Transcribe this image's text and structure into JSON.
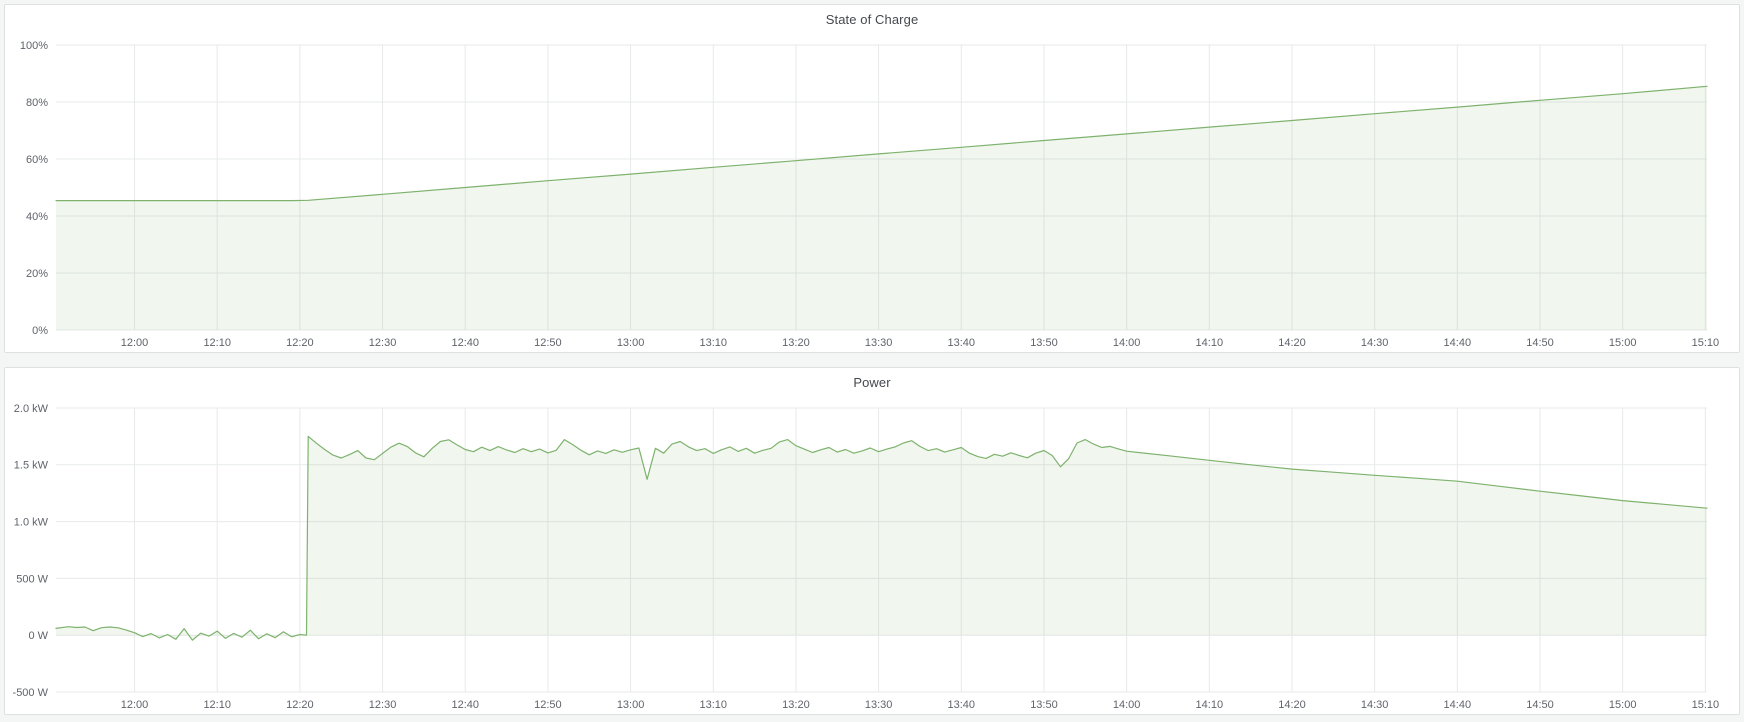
{
  "page": {
    "background": "#f4f5f5"
  },
  "colors": {
    "line": "#7eb26d",
    "fill": "rgba(126,178,109,0.11)",
    "grid": "#e7e9ea",
    "tick_text": "#5f636a",
    "title_text": "#44494f",
    "panel_bg": "#ffffff",
    "panel_border": "#dde0e1"
  },
  "chart_data": [
    {
      "type": "area",
      "title": "State of Charge",
      "ylabel": "",
      "xlabel": "",
      "legend": "none",
      "grid": true,
      "x_domain": [
        710.5,
        910.2
      ],
      "y_domain": [
        0,
        100
      ],
      "x_ticks": [
        {
          "t": 720,
          "label": "12:00"
        },
        {
          "t": 730,
          "label": "12:10"
        },
        {
          "t": 740,
          "label": "12:20"
        },
        {
          "t": 750,
          "label": "12:30"
        },
        {
          "t": 760,
          "label": "12:40"
        },
        {
          "t": 770,
          "label": "12:50"
        },
        {
          "t": 780,
          "label": "13:00"
        },
        {
          "t": 790,
          "label": "13:10"
        },
        {
          "t": 800,
          "label": "13:20"
        },
        {
          "t": 810,
          "label": "13:30"
        },
        {
          "t": 820,
          "label": "13:40"
        },
        {
          "t": 830,
          "label": "13:50"
        },
        {
          "t": 840,
          "label": "14:00"
        },
        {
          "t": 850,
          "label": "14:10"
        },
        {
          "t": 860,
          "label": "14:20"
        },
        {
          "t": 870,
          "label": "14:30"
        },
        {
          "t": 880,
          "label": "14:40"
        },
        {
          "t": 890,
          "label": "14:50"
        },
        {
          "t": 900,
          "label": "15:00"
        },
        {
          "t": 910,
          "label": "15:10"
        }
      ],
      "y_ticks": [
        {
          "v": 0,
          "label": "0%"
        },
        {
          "v": 20,
          "label": "20%"
        },
        {
          "v": 40,
          "label": "40%"
        },
        {
          "v": 60,
          "label": "60%"
        },
        {
          "v": 80,
          "label": "80%"
        },
        {
          "v": 100,
          "label": "100%"
        }
      ],
      "series": [
        {
          "name": "State of Charge",
          "unit": "%",
          "points": [
            [
              710.5,
              45.4
            ],
            [
              715,
              45.4
            ],
            [
              720,
              45.4
            ],
            [
              725,
              45.4
            ],
            [
              730,
              45.4
            ],
            [
              735,
              45.4
            ],
            [
              739,
              45.4
            ],
            [
              741,
              45.5
            ],
            [
              750,
              47.6
            ],
            [
              760,
              50.0
            ],
            [
              770,
              52.4
            ],
            [
              780,
              54.7
            ],
            [
              790,
              57.1
            ],
            [
              800,
              59.4
            ],
            [
              810,
              61.8
            ],
            [
              820,
              64.1
            ],
            [
              830,
              66.5
            ],
            [
              840,
              68.8
            ],
            [
              850,
              71.2
            ],
            [
              860,
              73.5
            ],
            [
              870,
              75.9
            ],
            [
              880,
              78.2
            ],
            [
              890,
              80.6
            ],
            [
              900,
              82.9
            ],
            [
              910.2,
              85.5
            ]
          ]
        }
      ]
    },
    {
      "type": "area",
      "title": "Power",
      "ylabel": "",
      "xlabel": "",
      "legend": "none",
      "grid": true,
      "x_domain": [
        710.5,
        910.2
      ],
      "y_domain": [
        -500,
        2000
      ],
      "x_ticks": [
        {
          "t": 720,
          "label": "12:00"
        },
        {
          "t": 730,
          "label": "12:10"
        },
        {
          "t": 740,
          "label": "12:20"
        },
        {
          "t": 750,
          "label": "12:30"
        },
        {
          "t": 760,
          "label": "12:40"
        },
        {
          "t": 770,
          "label": "12:50"
        },
        {
          "t": 780,
          "label": "13:00"
        },
        {
          "t": 790,
          "label": "13:10"
        },
        {
          "t": 800,
          "label": "13:20"
        },
        {
          "t": 810,
          "label": "13:30"
        },
        {
          "t": 820,
          "label": "13:40"
        },
        {
          "t": 830,
          "label": "13:50"
        },
        {
          "t": 840,
          "label": "14:00"
        },
        {
          "t": 850,
          "label": "14:10"
        },
        {
          "t": 860,
          "label": "14:20"
        },
        {
          "t": 870,
          "label": "14:30"
        },
        {
          "t": 880,
          "label": "14:40"
        },
        {
          "t": 890,
          "label": "14:50"
        },
        {
          "t": 900,
          "label": "15:00"
        },
        {
          "t": 910,
          "label": "15:10"
        }
      ],
      "y_ticks": [
        {
          "v": -500,
          "label": "-500 W"
        },
        {
          "v": 0,
          "label": "0 W"
        },
        {
          "v": 500,
          "label": "500 W"
        },
        {
          "v": 1000,
          "label": "1.0 kW"
        },
        {
          "v": 1500,
          "label": "1.5 kW"
        },
        {
          "v": 2000,
          "label": "2.0 kW"
        }
      ],
      "series": [
        {
          "name": "Power",
          "unit": "W",
          "points": [
            [
              710.5,
              60
            ],
            [
              712,
              75
            ],
            [
              713,
              68
            ],
            [
              714,
              72
            ],
            [
              715,
              40
            ],
            [
              716,
              66
            ],
            [
              717,
              72
            ],
            [
              718,
              65
            ],
            [
              719,
              45
            ],
            [
              720,
              22
            ],
            [
              721,
              -12
            ],
            [
              722,
              14
            ],
            [
              723,
              -24
            ],
            [
              724,
              6
            ],
            [
              725,
              -36
            ],
            [
              726,
              58
            ],
            [
              727,
              -44
            ],
            [
              728,
              18
            ],
            [
              729,
              -8
            ],
            [
              730,
              36
            ],
            [
              731,
              -28
            ],
            [
              732,
              16
            ],
            [
              733,
              -18
            ],
            [
              734,
              44
            ],
            [
              735,
              -32
            ],
            [
              736,
              12
            ],
            [
              737,
              -22
            ],
            [
              738,
              30
            ],
            [
              739,
              -14
            ],
            [
              740,
              6
            ],
            [
              740.8,
              0
            ],
            [
              741,
              1750
            ],
            [
              742,
              1690
            ],
            [
              743,
              1635
            ],
            [
              744,
              1585
            ],
            [
              745,
              1560
            ],
            [
              746,
              1590
            ],
            [
              747,
              1625
            ],
            [
              748,
              1560
            ],
            [
              749,
              1545
            ],
            [
              750,
              1600
            ],
            [
              751,
              1655
            ],
            [
              752,
              1690
            ],
            [
              753,
              1660
            ],
            [
              754,
              1605
            ],
            [
              755,
              1570
            ],
            [
              756,
              1645
            ],
            [
              757,
              1705
            ],
            [
              758,
              1720
            ],
            [
              759,
              1675
            ],
            [
              760,
              1635
            ],
            [
              761,
              1615
            ],
            [
              762,
              1655
            ],
            [
              763,
              1625
            ],
            [
              764,
              1660
            ],
            [
              765,
              1630
            ],
            [
              766,
              1608
            ],
            [
              767,
              1642
            ],
            [
              768,
              1615
            ],
            [
              769,
              1638
            ],
            [
              770,
              1605
            ],
            [
              771,
              1628
            ],
            [
              772,
              1722
            ],
            [
              773,
              1678
            ],
            [
              774,
              1628
            ],
            [
              775,
              1588
            ],
            [
              776,
              1622
            ],
            [
              777,
              1600
            ],
            [
              778,
              1632
            ],
            [
              779,
              1610
            ],
            [
              780,
              1632
            ],
            [
              781,
              1648
            ],
            [
              782,
              1372
            ],
            [
              783,
              1645
            ],
            [
              784,
              1602
            ],
            [
              785,
              1682
            ],
            [
              786,
              1705
            ],
            [
              787,
              1658
            ],
            [
              788,
              1625
            ],
            [
              789,
              1642
            ],
            [
              790,
              1600
            ],
            [
              791,
              1632
            ],
            [
              792,
              1658
            ],
            [
              793,
              1618
            ],
            [
              794,
              1645
            ],
            [
              795,
              1602
            ],
            [
              796,
              1628
            ],
            [
              797,
              1645
            ],
            [
              798,
              1702
            ],
            [
              799,
              1722
            ],
            [
              800,
              1668
            ],
            [
              801,
              1638
            ],
            [
              802,
              1608
            ],
            [
              803,
              1632
            ],
            [
              804,
              1652
            ],
            [
              805,
              1612
            ],
            [
              806,
              1635
            ],
            [
              807,
              1602
            ],
            [
              808,
              1622
            ],
            [
              809,
              1648
            ],
            [
              810,
              1615
            ],
            [
              811,
              1638
            ],
            [
              812,
              1658
            ],
            [
              813,
              1692
            ],
            [
              814,
              1712
            ],
            [
              815,
              1662
            ],
            [
              816,
              1625
            ],
            [
              817,
              1642
            ],
            [
              818,
              1612
            ],
            [
              819,
              1632
            ],
            [
              820,
              1652
            ],
            [
              821,
              1602
            ],
            [
              822,
              1572
            ],
            [
              823,
              1556
            ],
            [
              824,
              1592
            ],
            [
              825,
              1576
            ],
            [
              826,
              1606
            ],
            [
              827,
              1582
            ],
            [
              828,
              1562
            ],
            [
              829,
              1602
            ],
            [
              830,
              1626
            ],
            [
              831,
              1582
            ],
            [
              832,
              1482
            ],
            [
              833,
              1556
            ],
            [
              834,
              1692
            ],
            [
              835,
              1722
            ],
            [
              836,
              1682
            ],
            [
              837,
              1652
            ],
            [
              838,
              1662
            ],
            [
              839,
              1640
            ],
            [
              840,
              1620
            ],
            [
              845,
              1580
            ],
            [
              850,
              1540
            ],
            [
              855,
              1500
            ],
            [
              860,
              1462
            ],
            [
              865,
              1435
            ],
            [
              870,
              1408
            ],
            [
              875,
              1382
            ],
            [
              880,
              1356
            ],
            [
              885,
              1312
            ],
            [
              890,
              1268
            ],
            [
              895,
              1226
            ],
            [
              900,
              1185
            ],
            [
              905,
              1152
            ],
            [
              910.2,
              1118
            ]
          ]
        }
      ]
    }
  ]
}
